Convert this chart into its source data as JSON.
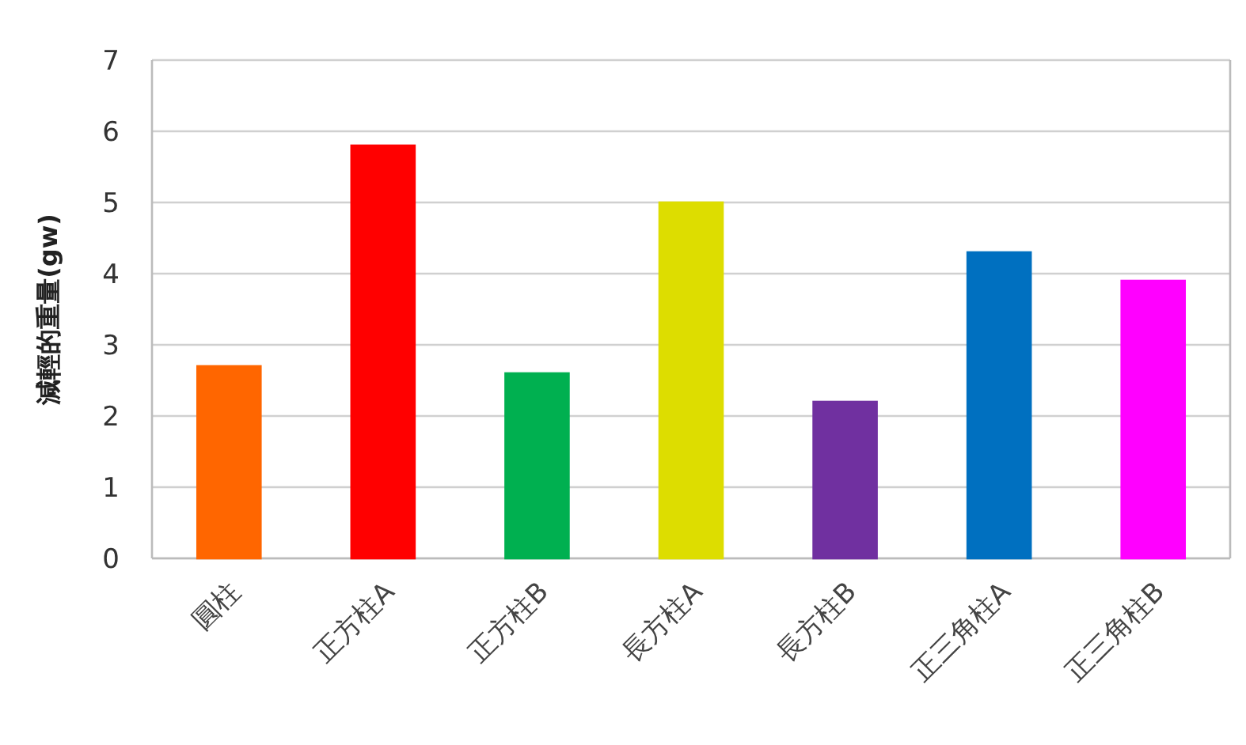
{
  "chart_data": {
    "type": "bar",
    "ylabel": "減輕的重量(gw)",
    "categories": [
      "圓柱",
      "正方柱A",
      "正方柱B",
      "長方柱A",
      "長方柱B",
      "正三角柱A",
      "正三角柱B"
    ],
    "values": [
      2.7,
      5.8,
      2.6,
      5.0,
      2.2,
      4.3,
      3.9
    ],
    "colors": [
      "#ff6600",
      "#ff0000",
      "#00b050",
      "#dddd00",
      "#7030a0",
      "#0070c0",
      "#ff00ff"
    ],
    "ylim": [
      0,
      7
    ],
    "yticks": [
      0,
      1,
      2,
      3,
      4,
      5,
      6,
      7
    ],
    "grid": "y"
  }
}
